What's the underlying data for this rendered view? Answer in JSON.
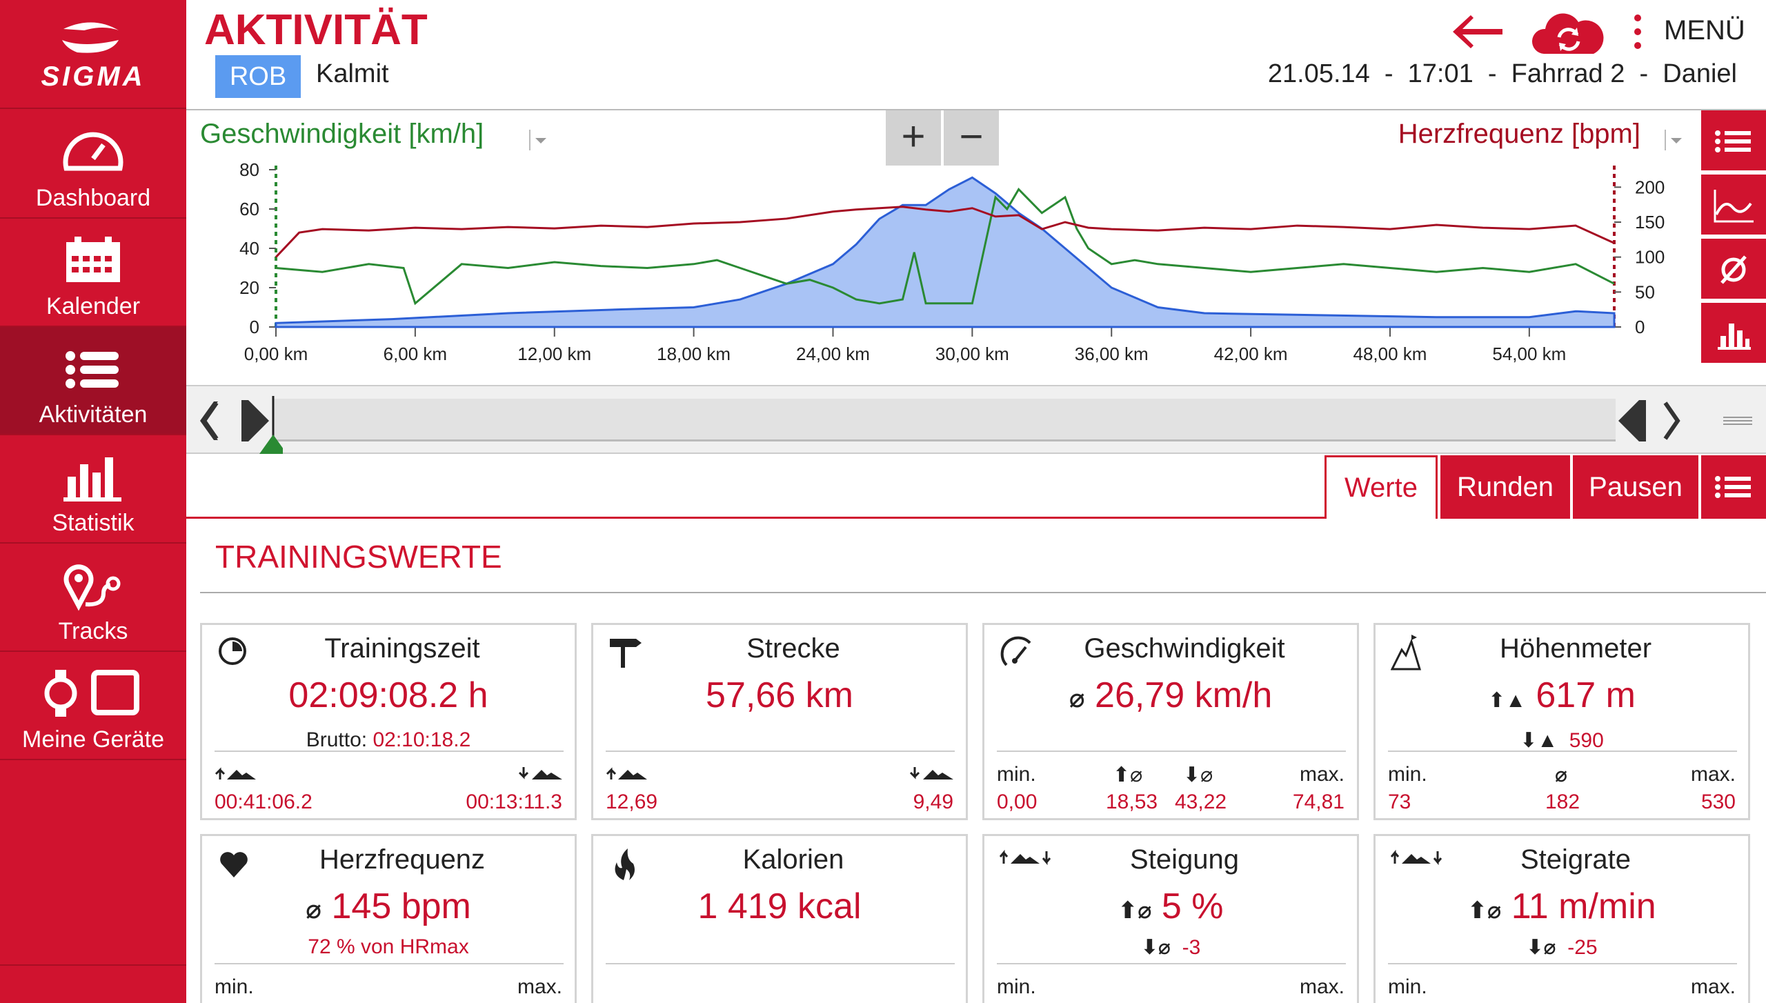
{
  "app": {
    "brand": "SIGMA",
    "title": "AKTIVITÄT",
    "sport_badge": "ROB",
    "location": "Kalmit",
    "meta": "21.05.14  -  17:01  -  Fahrrad 2  -  Daniel",
    "menu_label": "MENÜ"
  },
  "sidebar": {
    "items": [
      {
        "label": "Dashboard"
      },
      {
        "label": "Kalender"
      },
      {
        "label": "Aktivitäten"
      },
      {
        "label": "Statistik"
      },
      {
        "label": "Tracks"
      },
      {
        "label": "Meine Geräte"
      }
    ]
  },
  "chart_controls": {
    "left_metric": "Geschwindigkeit [km/h]",
    "right_metric": "Herzfrequenz [bpm]",
    "zoom_in": "+",
    "zoom_out": "−"
  },
  "chart_data": {
    "type": "line",
    "x_unit": "km",
    "x_tick_labels": [
      "0,00 km",
      "6,00 km",
      "12,00 km",
      "18,00 km",
      "24,00 km",
      "30,00 km",
      "36,00 km",
      "42,00 km",
      "48,00 km",
      "54,00 km"
    ],
    "x_ticks": [
      0,
      6,
      12,
      18,
      24,
      30,
      36,
      42,
      48,
      54
    ],
    "xlim": [
      0,
      57.66
    ],
    "y_left": {
      "label": "Geschwindigkeit [km/h]",
      "ylim": [
        0,
        80
      ],
      "ticks": [
        0,
        20,
        40,
        60,
        80
      ]
    },
    "y_right": {
      "label": "Herzfrequenz [bpm]",
      "ylim": [
        0,
        225
      ],
      "ticks": [
        0,
        50,
        100,
        150,
        200
      ]
    },
    "colors": {
      "speed": "#2a8a33",
      "heart_rate": "#a50d22",
      "altitude_fill": "#a9c3f5",
      "altitude_line": "#2c5fd6"
    },
    "series": [
      {
        "name": "Geschwindigkeit [km/h]",
        "axis": "left",
        "x": [
          0,
          2,
          4,
          5.5,
          6,
          8,
          10,
          12,
          14,
          16,
          18,
          19,
          20,
          21,
          22,
          23,
          24,
          25,
          26,
          27,
          27.5,
          28,
          29,
          30,
          31,
          31.5,
          32,
          33,
          34,
          34.5,
          35,
          36,
          37,
          38,
          40,
          42,
          44,
          46,
          48,
          50,
          52,
          54,
          56,
          57.66
        ],
        "y": [
          30,
          28,
          32,
          30,
          12,
          32,
          30,
          33,
          31,
          30,
          32,
          34,
          30,
          26,
          22,
          24,
          20,
          14,
          12,
          14,
          38,
          12,
          12,
          12,
          66,
          60,
          70,
          58,
          66,
          50,
          40,
          32,
          34,
          32,
          30,
          28,
          30,
          32,
          30,
          28,
          30,
          28,
          32,
          22
        ]
      },
      {
        "name": "Herzfrequenz [bpm]",
        "axis": "right",
        "x": [
          0,
          1,
          2,
          4,
          6,
          8,
          10,
          12,
          14,
          16,
          18,
          20,
          22,
          24,
          25,
          26,
          27,
          28,
          29,
          30,
          31,
          32,
          33,
          34,
          35,
          36,
          38,
          40,
          42,
          44,
          46,
          48,
          50,
          52,
          54,
          56,
          57.66
        ],
        "y": [
          100,
          135,
          140,
          138,
          142,
          140,
          143,
          141,
          145,
          143,
          148,
          150,
          155,
          165,
          168,
          170,
          172,
          168,
          165,
          170,
          158,
          160,
          140,
          150,
          142,
          140,
          138,
          142,
          140,
          145,
          143,
          140,
          146,
          142,
          140,
          145,
          120
        ]
      },
      {
        "name": "altitude",
        "axis": "left",
        "x": [
          0,
          5,
          10,
          15,
          18,
          20,
          22,
          24,
          25,
          26,
          27,
          28,
          29,
          30,
          31,
          32,
          33,
          34,
          35,
          36,
          38,
          40,
          45,
          50,
          54,
          56,
          57.66
        ],
        "y": [
          2,
          4,
          7,
          9,
          10,
          14,
          22,
          32,
          42,
          55,
          62,
          62,
          70,
          76,
          68,
          58,
          50,
          40,
          30,
          20,
          10,
          7,
          6,
          5,
          5,
          8,
          7
        ]
      }
    ]
  },
  "tabs": {
    "werte": "Werte",
    "runden": "Runden",
    "pausen": "Pausen"
  },
  "section_title": "TRAININGSWERTE",
  "cards": {
    "trainingszeit": {
      "title": "Trainingszeit",
      "value": "02:09:08.2 h",
      "brutto_label": "Brutto:",
      "brutto_value": "02:10:18.2",
      "up_value": "00:41:06.2",
      "down_value": "00:13:11.3"
    },
    "strecke": {
      "title": "Strecke",
      "value": "57,66 km",
      "up_value": "12,69",
      "down_value": "9,49"
    },
    "geschwindigkeit": {
      "title": "Geschwindigkeit",
      "value": "26,79 km/h",
      "min_label": "min.",
      "max_label": "max.",
      "min_value": "0,00",
      "avg_up_value": "18,53",
      "avg_down_value": "43,22",
      "max_value": "74,81"
    },
    "hoehenmeter": {
      "title": "Höhenmeter",
      "value": "617 m",
      "down_value": "590",
      "min_label": "min.",
      "max_label": "max.",
      "min_value": "73",
      "avg_value": "182",
      "max_value": "530"
    },
    "herzfrequenz": {
      "title": "Herzfrequenz",
      "value": "145 bpm",
      "sub": "72 % von HRmax",
      "min_label": "min.",
      "max_label": "max."
    },
    "kalorien": {
      "title": "Kalorien",
      "value": "1 419 kcal"
    },
    "steigung": {
      "title": "Steigung",
      "value": "5 %",
      "down_value": "-3",
      "min_label": "min.",
      "max_label": "max."
    },
    "steigrate": {
      "title": "Steigrate",
      "value": "11 m/min",
      "down_value": "-25",
      "min_label": "min.",
      "max_label": "max."
    }
  }
}
